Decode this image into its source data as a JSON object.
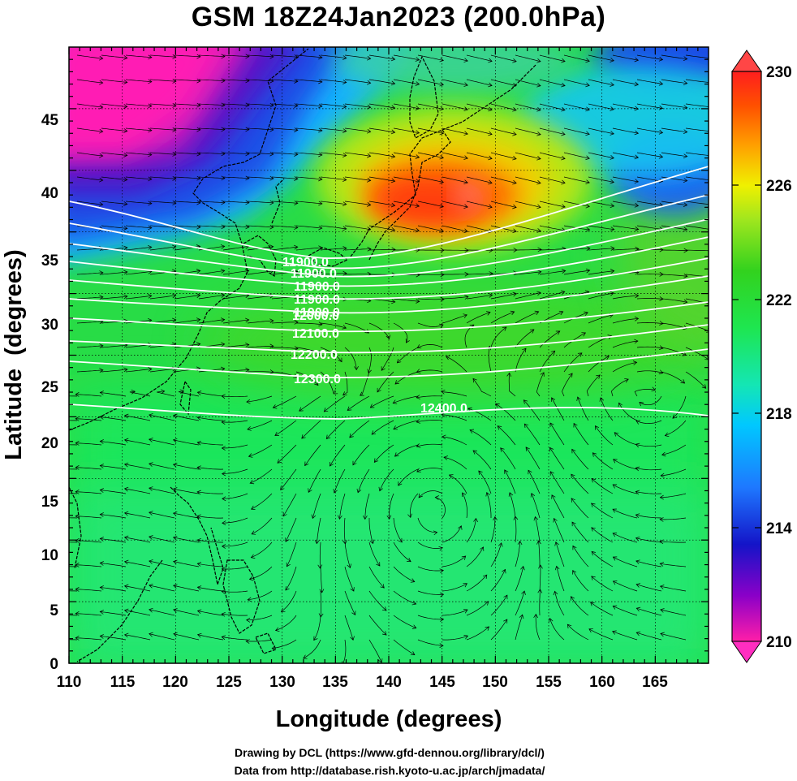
{
  "title": "GSM 18Z24Jan2023 (200.0hPa)",
  "axes": {
    "x_label": "Longitude (degrees)",
    "y_label": "Latitude  (degrees)",
    "x_ticks": [
      "110",
      "115",
      "120",
      "125",
      "130",
      "135",
      "140",
      "145",
      "150",
      "155",
      "160",
      "165"
    ],
    "y_ticks": [
      "0",
      "5",
      "10",
      "15",
      "20",
      "25",
      "30",
      "35",
      "40",
      "45"
    ]
  },
  "map": {
    "lon_range": [
      110,
      170
    ],
    "lat_range": [
      0,
      50
    ],
    "field": "temperature",
    "vectors": "wind streamlines"
  },
  "colorbar": {
    "labels": [
      "230",
      "226",
      "222",
      "218",
      "214",
      "210"
    ],
    "min": 210,
    "max": 230,
    "colors": [
      "#ff1ea8",
      "#8b00c8",
      "#1414c8",
      "#1e78ff",
      "#00c8ff",
      "#14e6b4",
      "#1ee650",
      "#32d21e",
      "#a0e61e",
      "#f0f000",
      "#ffa000",
      "#ff5000",
      "#ff1e1e"
    ]
  },
  "contours": {
    "color": "#ffffff",
    "labels": [
      "11900.0",
      "11900.0",
      "11900.0",
      "11900.0",
      "11900.0",
      "12000.0",
      "12100.0",
      "12200.0",
      "12300.0",
      "12400.0"
    ]
  },
  "credits": {
    "line1": "Drawing by DCL (https://www.gfd-dennou.org/library/dcl/)",
    "line2": "Data from http://database.rish.kyoto-u.ac.jp/arch/jmadata/"
  }
}
